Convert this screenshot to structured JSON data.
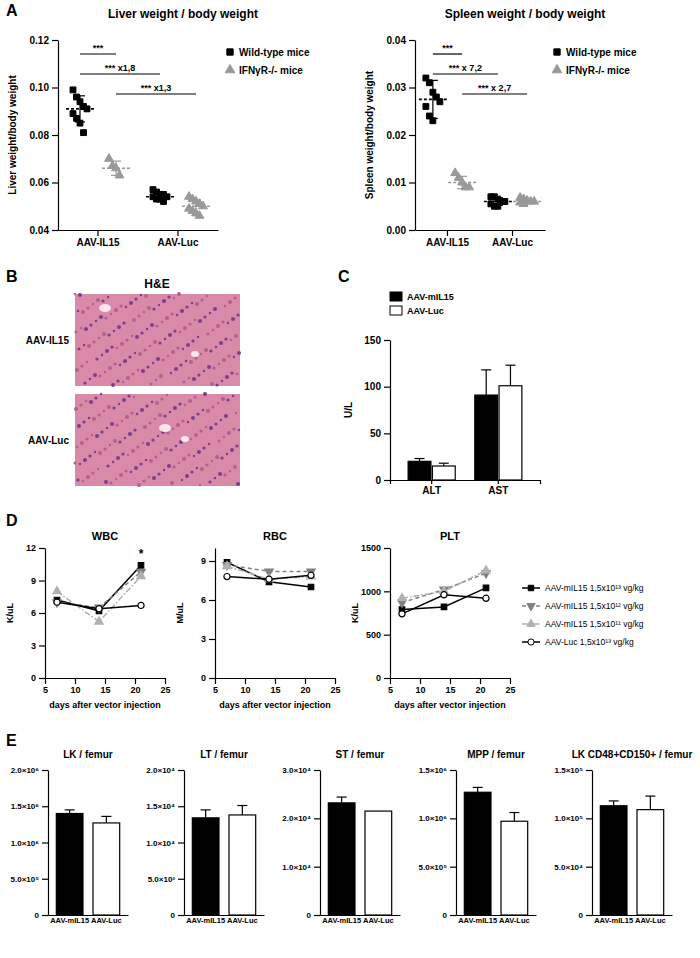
{
  "chart_data": [
    {
      "panel_label": "A",
      "type": "scatter",
      "title": "Liver weight / body weight",
      "y_label": "Liver weight/body weight",
      "categories": [
        "AAV-IL15",
        "AAV-Luc"
      ],
      "series": [
        {
          "name": "Wild-type mice",
          "color": "#000000",
          "marker": "square",
          "values": [
            [
              0.099,
              0.096,
              0.094,
              0.092,
              0.091,
              0.089,
              0.087,
              0.085,
              0.081
            ],
            [
              0.057,
              0.056,
              0.055,
              0.055,
              0.054,
              0.054,
              0.053,
              0.053,
              0.052
            ]
          ],
          "mean": [
            0.091,
            0.054
          ],
          "sd": [
            0.0055,
            0.0015
          ]
        },
        {
          "name": "IFNγR-/- mice",
          "color": "#999999",
          "marker": "triangle",
          "values": [
            [
              0.07,
              0.067,
              0.066,
              0.063
            ],
            [
              0.054,
              0.053,
              0.052,
              0.051,
              0.05,
              0.049,
              0.048,
              0.047,
              0.046
            ]
          ],
          "mean": [
            0.066,
            0.05
          ],
          "sd": [
            0.003,
            0.0027
          ]
        }
      ],
      "ylim": [
        0.04,
        0.12
      ],
      "yticks": [
        0.04,
        0.06,
        0.08,
        {
          "value": 0.1,
          "label": "0.10"
        },
        0.12
      ],
      "legend": "right",
      "comparisons": [
        {
          "label": "***",
          "groups": [
            [
              0,
              0
            ],
            [
              0,
              1
            ]
          ]
        },
        {
          "label": "*** x1,8",
          "groups": [
            [
              0,
              0
            ],
            [
              1,
              0
            ]
          ]
        },
        {
          "label": "*** x1,3",
          "groups": [
            [
              0,
              1
            ],
            [
              1,
              1
            ]
          ]
        }
      ]
    },
    {
      "type": "scatter",
      "title": "Spleen weight / body weight",
      "y_label": "Spleen weight/body weight",
      "categories": [
        "AAV-IL15",
        "AAV-Luc"
      ],
      "series": [
        {
          "name": "Wild-type mice",
          "color": "#000000",
          "marker": "square",
          "values": [
            [
              0.032,
              0.031,
              0.029,
              0.028,
              0.027,
              0.026,
              0.024,
              0.023
            ],
            [
              0.007,
              0.007,
              0.0065,
              0.006,
              0.006,
              0.0055,
              0.005,
              0.005
            ]
          ],
          "mean": [
            0.0275,
            0.006
          ],
          "sd": [
            0.004,
            0.0008
          ]
        },
        {
          "name": "IFNγR-/- mice",
          "color": "#999999",
          "marker": "triangle",
          "values": [
            [
              0.012,
              0.011,
              0.01,
              0.009,
              0.009
            ],
            [
              0.0068,
              0.0065,
              0.0062,
              0.006,
              0.006,
              0.0058,
              0.0055
            ]
          ],
          "mean": [
            0.01,
            0.006
          ],
          "sd": [
            0.0013,
            0.0005
          ]
        }
      ],
      "ylim": [
        0,
        0.04
      ],
      "yticks": [
        {
          "value": 0,
          "label": "0.00"
        },
        0.01,
        0.02,
        0.03,
        0.04
      ],
      "legend": "right",
      "comparisons": [
        {
          "label": "***",
          "groups": [
            [
              0,
              0
            ],
            [
              0,
              1
            ]
          ]
        },
        {
          "label": "*** x 7,2",
          "groups": [
            [
              0,
              0
            ],
            [
              1,
              0
            ]
          ]
        },
        {
          "label": "*** x 2,7",
          "groups": [
            [
              0,
              1
            ],
            [
              1,
              1
            ]
          ]
        }
      ]
    },
    {
      "panel_label": "C",
      "type": "bar",
      "y_label": "U/L",
      "categories": [
        "ALT",
        "AST"
      ],
      "series": [
        {
          "name": "AAV-mIL15",
          "color": "#000000",
          "values": [
            20,
            91
          ],
          "errors": [
            3,
            27
          ]
        },
        {
          "name": "AAV-Luc",
          "color": "#ffffff",
          "values": [
            15,
            101
          ],
          "errors": [
            3,
            22
          ]
        }
      ],
      "ylim": [
        0,
        150
      ],
      "yticks": [
        0,
        50,
        100,
        150
      ],
      "legend": "top"
    },
    {
      "panel_label": "D",
      "type": "line",
      "title": "WBC",
      "x_label": "days after vector injection",
      "y_label": "K/uL",
      "x": [
        7,
        14,
        21
      ],
      "xlim": [
        5,
        25
      ],
      "xticks": [
        5,
        10,
        15,
        20,
        25
      ],
      "ylim": [
        0,
        12
      ],
      "yticks": [
        0,
        3,
        6,
        9,
        12
      ],
      "series": [
        {
          "color": "#000000",
          "marker": "square",
          "line_style": "solid",
          "values": [
            7.2,
            6.2,
            10.4
          ]
        },
        {
          "color": "#808080",
          "marker": "triangle-down",
          "line_style": "dashed",
          "values": [
            7.0,
            6.5,
            9.8
          ]
        },
        {
          "color": "#b0b0b0",
          "marker": "triangle",
          "line_style": "dashdot",
          "values": [
            8.0,
            5.2,
            9.4
          ]
        },
        {
          "color": "#000000",
          "marker": "circle-open",
          "line_style": "solid",
          "values": [
            7.0,
            6.4,
            6.7
          ]
        }
      ],
      "annotations": [
        {
          "text": "*",
          "x": 21
        }
      ]
    },
    {
      "type": "line",
      "title": "RBC",
      "x_label": "days after vector injection",
      "y_label": "M/uL",
      "x": [
        7,
        14,
        21
      ],
      "xlim": [
        5,
        25
      ],
      "xticks": [
        5,
        10,
        15,
        20,
        25
      ],
      "ylim": [
        0,
        10
      ],
      "yticks": [
        0,
        3,
        6,
        9
      ],
      "series": [
        {
          "color": "#000000",
          "marker": "square",
          "line_style": "solid",
          "values": [
            8.9,
            7.4,
            7.0
          ]
        },
        {
          "color": "#808080",
          "marker": "triangle-down",
          "line_style": "dashed",
          "values": [
            8.7,
            8.2,
            8.2
          ]
        },
        {
          "color": "#b0b0b0",
          "marker": "triangle",
          "line_style": "dashdot",
          "values": [
            8.6,
            7.6,
            7.8
          ]
        },
        {
          "color": "#000000",
          "marker": "circle-open",
          "line_style": "solid",
          "values": [
            7.8,
            7.6,
            7.9
          ]
        }
      ]
    },
    {
      "type": "line",
      "title": "PLT",
      "x_label": "days after vector injection",
      "y_label": "K/uL",
      "x": [
        7,
        14,
        21
      ],
      "xlim": [
        5,
        25
      ],
      "xticks": [
        5,
        10,
        15,
        20,
        25
      ],
      "ylim": [
        0,
        1500
      ],
      "yticks": [
        0,
        500,
        1000,
        1500
      ],
      "legend": "right",
      "series": [
        {
          "name": "AAV-mIL15 1,5x10¹³ vg/kg",
          "color": "#000000",
          "marker": "square",
          "line_style": "solid",
          "values": [
            790,
            820,
            1040
          ]
        },
        {
          "name": "AAV-mIL15 1,5x10¹² vg/kg",
          "color": "#808080",
          "marker": "triangle-down",
          "line_style": "dashed",
          "values": [
            870,
            1020,
            1210
          ]
        },
        {
          "name": "AAV-mIL15 1,5x10¹¹ vg/kg",
          "color": "#b0b0b0",
          "marker": "triangle",
          "line_style": "dashdot",
          "values": [
            920,
            1000,
            1240
          ]
        },
        {
          "name": "AAV-Luc 1,5x10¹³ vg/kg",
          "color": "#000000",
          "marker": "circle-open",
          "line_style": "solid",
          "values": [
            740,
            960,
            920
          ]
        }
      ]
    },
    {
      "panel_label": "E",
      "type": "bar",
      "title": "LK / femur",
      "categories": [
        "AAV-mIL15",
        "AAV-Luc"
      ],
      "values": [
        1400000,
        1270000
      ],
      "errors": [
        50000,
        90000
      ],
      "colors": [
        "#000000",
        "#ffffff"
      ],
      "ylim": [
        0,
        2000000
      ],
      "yticks": [
        0,
        {
          "value": 500000,
          "label": "5.0×10⁵"
        },
        {
          "value": 1000000,
          "label": "1.0×10⁶"
        },
        {
          "value": 1500000,
          "label": "1.5×10⁶"
        },
        {
          "value": 2000000,
          "label": "2.0×10⁶"
        }
      ]
    },
    {
      "type": "bar",
      "title": "LT / femur",
      "categories": [
        "AAV-mIL15",
        "AAV-Luc"
      ],
      "values": [
        13400,
        13800
      ],
      "errors": [
        1100,
        1300
      ],
      "colors": [
        "#000000",
        "#ffffff"
      ],
      "ylim": [
        0,
        20000
      ],
      "yticks": [
        0,
        {
          "value": 5000,
          "label": "5.0×10³"
        },
        {
          "value": 10000,
          "label": "1.0×10⁴"
        },
        {
          "value": 15000,
          "label": "1.5×10⁴"
        },
        {
          "value": 20000,
          "label": "2.0×10⁴"
        }
      ]
    },
    {
      "type": "bar",
      "title": "ST / femur",
      "categories": [
        "AAV-mIL15",
        "AAV-Luc"
      ],
      "values": [
        23200,
        21500
      ],
      "errors": [
        1200,
        null
      ],
      "colors": [
        "#000000",
        "#ffffff"
      ],
      "ylim": [
        0,
        30000
      ],
      "yticks": [
        0,
        {
          "value": 10000,
          "label": "1.0×10⁴"
        },
        {
          "value": 20000,
          "label": "2.0×10⁴"
        },
        {
          "value": 30000,
          "label": "3.0×10⁴"
        }
      ]
    },
    {
      "type": "bar",
      "title": "MPP / femur",
      "categories": [
        "AAV-mIL15",
        "AAV-Luc"
      ],
      "values": [
        1270000,
        970000
      ],
      "errors": [
        50000,
        90000
      ],
      "colors": [
        "#000000",
        "#ffffff"
      ],
      "ylim": [
        0,
        1500000
      ],
      "yticks": [
        0,
        {
          "value": 500000,
          "label": "5.0×10⁵"
        },
        {
          "value": 1000000,
          "label": "1.0×10⁶"
        },
        {
          "value": 1500000,
          "label": "1.5×10⁶"
        }
      ]
    },
    {
      "type": "bar",
      "title": "LK CD48+CD150+ / femur",
      "categories": [
        "AAV-mIL15",
        "AAV-Luc"
      ],
      "values": [
        113000,
        109000
      ],
      "errors": [
        5000,
        14000
      ],
      "colors": [
        "#000000",
        "#ffffff"
      ],
      "ylim": [
        0,
        150000
      ],
      "yticks": [
        0,
        {
          "value": 50000,
          "label": "5.0×10⁴"
        },
        {
          "value": 100000,
          "label": "1.0×10⁵"
        },
        {
          "value": 150000,
          "label": "1.5×10⁵"
        }
      ]
    }
  ],
  "image_panel": {
    "panel_label": "B",
    "title": "H&E",
    "rows": [
      "AAV-IL15",
      "AAV-Luc"
    ]
  }
}
